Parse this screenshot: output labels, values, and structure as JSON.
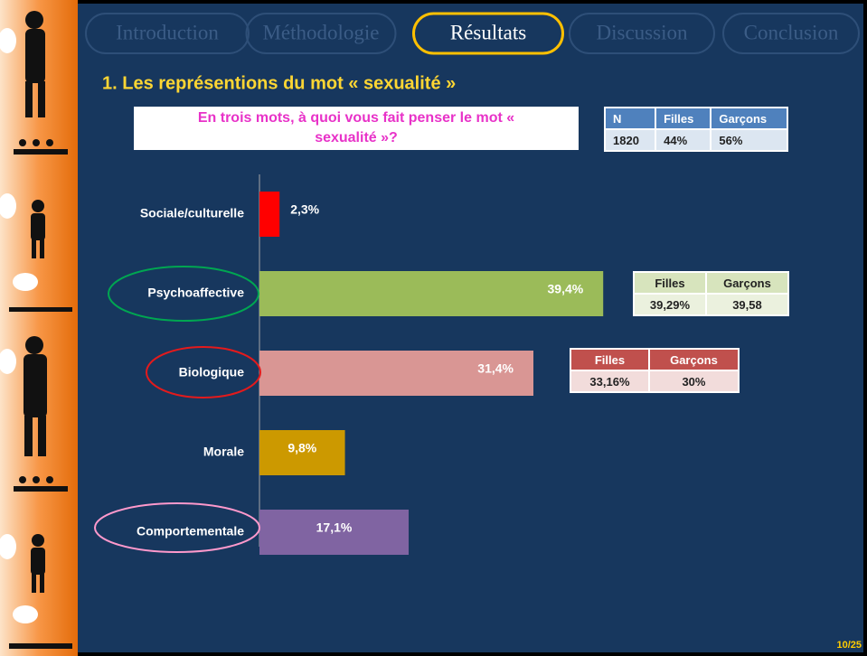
{
  "slide": {
    "nav": [
      "Introduction",
      "Méthodologie",
      "Résultats",
      "Discussion",
      "Conclusion"
    ],
    "active_nav": 2,
    "heading": "1. Les représentions  du mot « sexualité »",
    "question": "En trois mots, à quoi vous fait penser le mot « sexualité »?",
    "sample_table": {
      "header": [
        "N",
        "Filles",
        "Garçons"
      ],
      "row": [
        "1820",
        "44%",
        "56%"
      ]
    },
    "psycho_table": {
      "header": [
        "Filles",
        "Garçons"
      ],
      "row": [
        "39,29%",
        "39,58"
      ]
    },
    "bio_table": {
      "header": [
        "Filles",
        "Garçons"
      ],
      "row": [
        "33,16%",
        "30%"
      ]
    },
    "page": "10/25"
  },
  "chart_data": {
    "type": "bar",
    "orientation": "horizontal",
    "categories": [
      "Sociale/culturelle",
      "Psychoaffective",
      "Biologique",
      "Morale",
      "Comportementale"
    ],
    "values": [
      2.3,
      39.4,
      31.4,
      9.8,
      17.1
    ],
    "value_labels": [
      "2,3%",
      "39,4%",
      "31,4%",
      "9,8%",
      "17,1%"
    ],
    "colors": [
      "#ff0000",
      "#9bbb59",
      "#d99694",
      "#cc9900",
      "#8064a2"
    ]
  }
}
